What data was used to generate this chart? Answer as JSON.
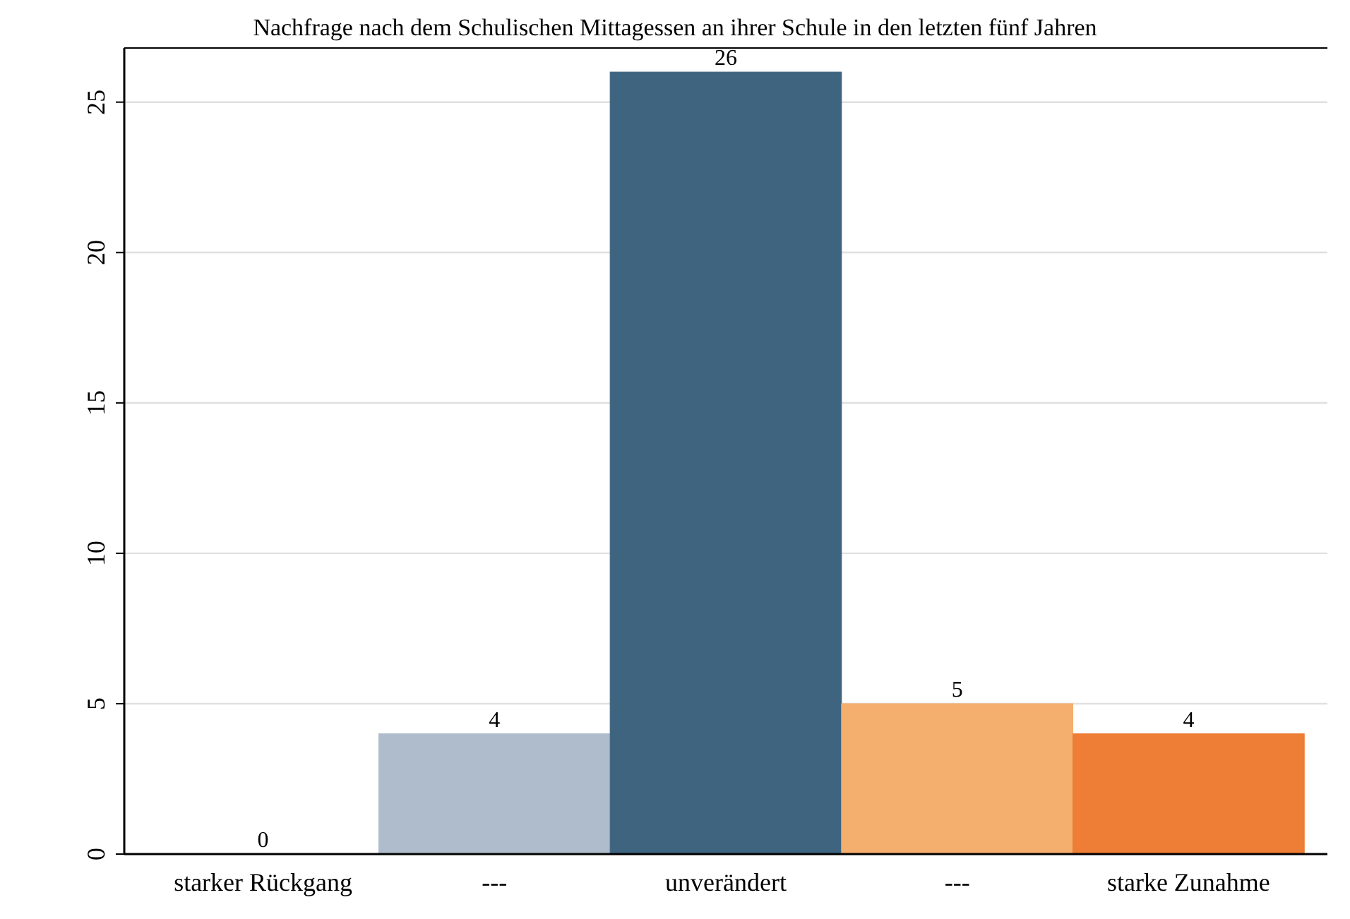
{
  "chart_data": {
    "type": "bar",
    "title": "Nachfrage nach dem Schulischen Mittagessen an ihrer Schule in den letzten fünf Jahren",
    "categories": [
      "starker Rückgang",
      "---",
      "unverändert",
      "---",
      "starke Zunahme"
    ],
    "values": [
      0,
      4,
      26,
      5,
      4
    ],
    "colors": [
      "#3e6480",
      "#aebccb",
      "#3e6480",
      "#f4ae6e",
      "#ee7d35"
    ],
    "ylim": [
      0,
      26.8
    ],
    "yticks": [
      0,
      5,
      10,
      15,
      20,
      25
    ],
    "grid": "y",
    "data_labels": true
  }
}
